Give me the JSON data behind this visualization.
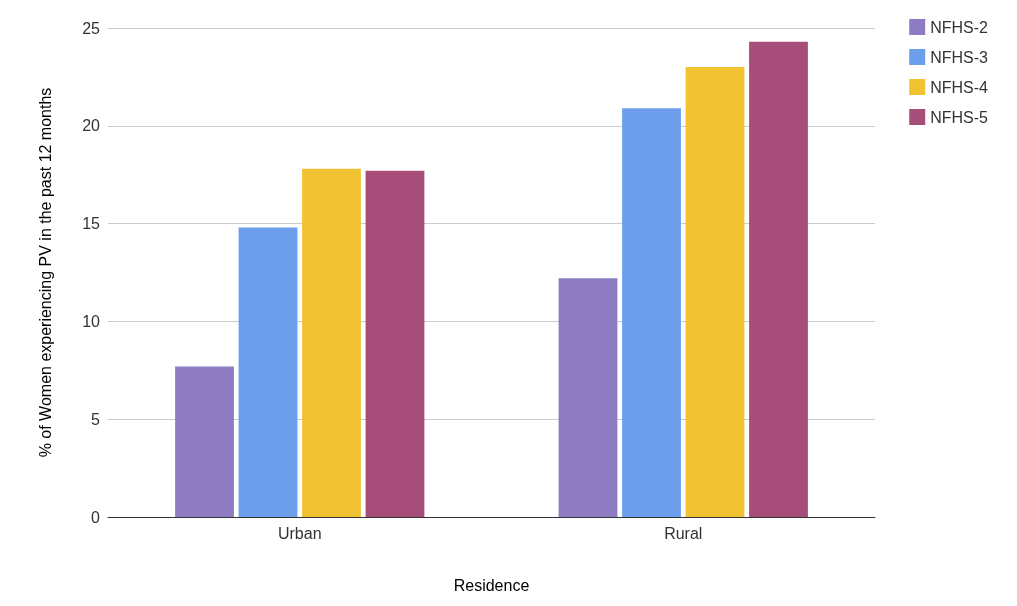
{
  "chart_data": {
    "type": "bar",
    "xlabel": "Residence",
    "ylabel": "% of Women experiencing PV in the past 12 months",
    "categories": [
      "Urban",
      "Rural"
    ],
    "series": [
      {
        "name": "NFHS-2",
        "color": "#8e7cc3",
        "values": [
          7.7,
          12.2
        ]
      },
      {
        "name": "NFHS-3",
        "color": "#6d9eeb",
        "values": [
          14.8,
          20.9
        ]
      },
      {
        "name": "NFHS-4",
        "color": "#f1c232",
        "values": [
          17.8,
          23.0
        ]
      },
      {
        "name": "NFHS-5",
        "color": "#a64d79",
        "values": [
          17.7,
          24.3
        ]
      }
    ],
    "ylim": [
      0,
      25
    ],
    "yticks": [
      0,
      5,
      10,
      15,
      20,
      25
    ],
    "grid": "y",
    "legend": "top right"
  }
}
